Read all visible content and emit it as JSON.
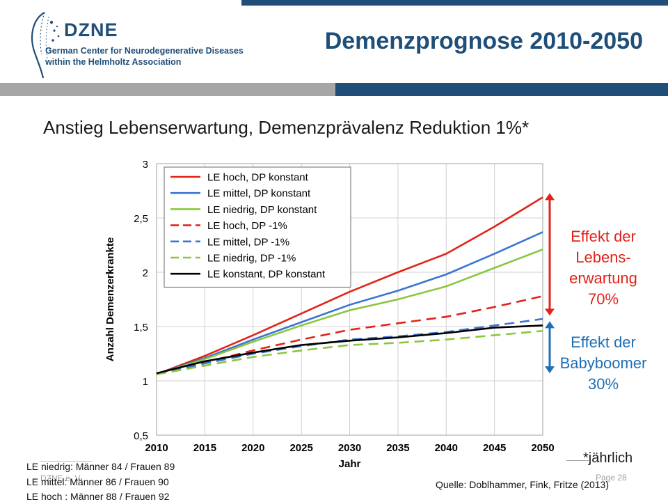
{
  "header": {
    "logo_name": "DZNE",
    "logo_line1": "German Center for Neurodegenerative Diseases",
    "logo_line2": "within the Helmholtz Association",
    "title": "Demenzprognose 2010-2050"
  },
  "subtitle": "Anstieg Lebenserwartung, Demenzprävalenz Reduktion 1%*",
  "annotations": {
    "lebenserwartung": [
      "Effekt der",
      "Lebens-",
      "erwartung",
      "70%"
    ],
    "babyboomer": [
      "Effekt der",
      "Babyboomer",
      "30%"
    ],
    "footnote": "*jährlich",
    "colors": {
      "red": "#e2231a",
      "blue": "#1f6fb5"
    }
  },
  "notes": [
    "LE niedrig: Männer  84 / Frauen  89",
    "LE mittel: Männer  86 / Frauen  90",
    "LE hoch : Männer  88 / Frauen  92"
  ],
  "footer": {
    "organization": "DZNE e. V.",
    "page": "Page 28",
    "source": "Quelle:  Doblhammer,  Fink,  Fritze (2013)"
  },
  "chart_data": {
    "type": "line",
    "x": [
      2010,
      2015,
      2020,
      2025,
      2030,
      2035,
      2040,
      2045,
      2050
    ],
    "xlabel": "Jahr",
    "ylabel": "Anzahl Demenzerkrankte",
    "ylim": [
      0.5,
      3
    ],
    "yticks": [
      "0,5",
      "1",
      "1,5",
      "2",
      "2,5",
      "3"
    ],
    "ytick_values": [
      0.5,
      1,
      1.5,
      2,
      2.5,
      3
    ],
    "grid": true,
    "legend_position": "top-left",
    "series": [
      {
        "name": "LE hoch, DP konstant",
        "color": "#e2231a",
        "dash": false,
        "values": [
          1.06,
          1.23,
          1.42,
          1.62,
          1.82,
          2.0,
          2.17,
          2.42,
          2.69
        ]
      },
      {
        "name": "LE mittel, DP konstant",
        "color": "#3a75d2",
        "dash": false,
        "values": [
          1.06,
          1.21,
          1.38,
          1.54,
          1.7,
          1.83,
          1.98,
          2.17,
          2.37
        ]
      },
      {
        "name": "LE niedrig, DP konstant",
        "color": "#8cc63f",
        "dash": false,
        "values": [
          1.06,
          1.2,
          1.36,
          1.51,
          1.65,
          1.75,
          1.87,
          2.04,
          2.21
        ]
      },
      {
        "name": "LE hoch, DP -1%",
        "color": "#e2231a",
        "dash": true,
        "values": [
          1.06,
          1.17,
          1.28,
          1.38,
          1.47,
          1.53,
          1.59,
          1.68,
          1.78
        ]
      },
      {
        "name": "LE mittel, DP -1%",
        "color": "#3a75d2",
        "dash": true,
        "values": [
          1.06,
          1.16,
          1.25,
          1.32,
          1.38,
          1.41,
          1.45,
          1.51,
          1.57
        ]
      },
      {
        "name": "LE niedrig, DP -1%",
        "color": "#8cc63f",
        "dash": true,
        "values": [
          1.06,
          1.14,
          1.22,
          1.28,
          1.33,
          1.35,
          1.38,
          1.42,
          1.46
        ]
      },
      {
        "name": "LE konstant, DP konstant",
        "color": "#000000",
        "dash": false,
        "values": [
          1.07,
          1.18,
          1.26,
          1.33,
          1.37,
          1.4,
          1.44,
          1.49,
          1.51
        ]
      }
    ]
  }
}
